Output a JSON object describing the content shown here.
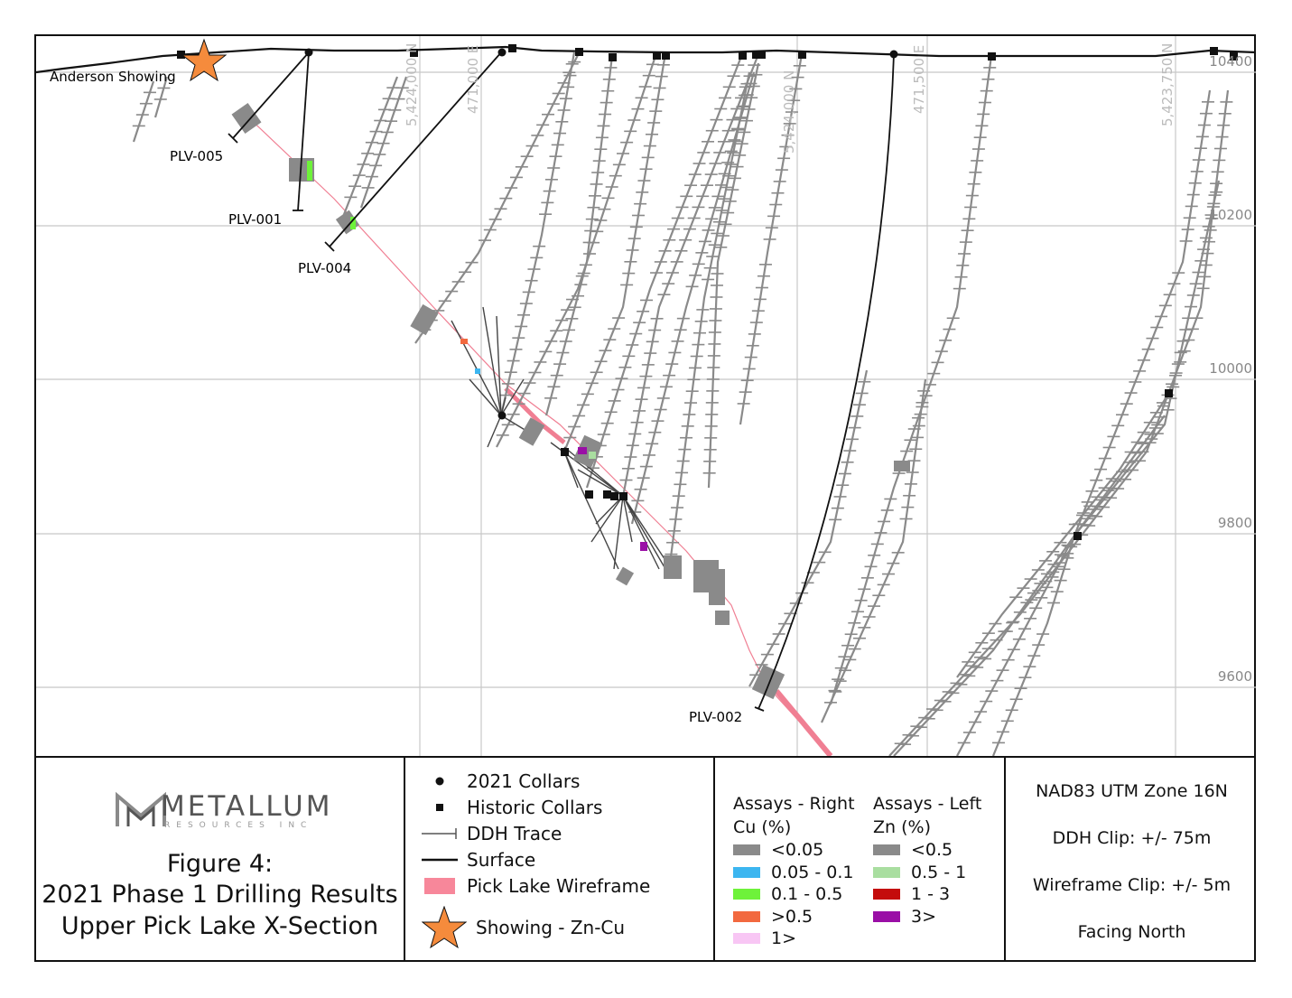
{
  "figure": {
    "company": "METALLUM",
    "company_sub": "RESOURCES INC",
    "title_lines": [
      "Figure 4:",
      "2021 Phase 1 Drilling Results",
      "Upper Pick Lake X-Section"
    ]
  },
  "map": {
    "showing_label": "Anderson Showing",
    "hole_labels": [
      "PLV-005",
      "PLV-001",
      "PLV-004",
      "PLV-002"
    ],
    "elevation_labels": [
      "10400",
      "10200",
      "10000",
      "9800",
      "9600"
    ],
    "grid_labels": [
      "5,424,000 N",
      "471,000 E",
      "5,424,000 N",
      "471,500 E",
      "5,423,750 N"
    ]
  },
  "legend": {
    "items": [
      {
        "label": "2021 Collars",
        "icon": "circle-icon"
      },
      {
        "label": "Historic Collars",
        "icon": "square-icon"
      },
      {
        "label": "DDH Trace",
        "icon": "trace-icon"
      },
      {
        "label": "Surface",
        "icon": "line-icon"
      },
      {
        "label": "Pick Lake Wireframe",
        "icon": "pink-box-icon"
      },
      {
        "label": "Showing - Zn-Cu",
        "icon": "star-icon"
      }
    ]
  },
  "assays": {
    "right": {
      "title1": "Assays - Right",
      "title2": "Cu (%)",
      "rows": [
        {
          "label": "<0.05",
          "color": "#8a8a8a"
        },
        {
          "label": "0.05 - 0.1",
          "color": "#3cb6f0"
        },
        {
          "label": "0.1 - 0.5",
          "color": "#6ef23a"
        },
        {
          "label": ">0.5",
          "color": "#f2693f"
        },
        {
          "label": "1>",
          "color": "#f8c6f4"
        }
      ]
    },
    "left": {
      "title1": "Assays - Left",
      "title2": "Zn (%)",
      "rows": [
        {
          "label": "<0.5",
          "color": "#8a8a8a"
        },
        {
          "label": "0.5 - 1",
          "color": "#a9dea0"
        },
        {
          "label": "1 - 3",
          "color": "#c40c0c"
        },
        {
          "label": "3>",
          "color": "#9a0fa6"
        }
      ]
    }
  },
  "info": {
    "datum": "NAD83 UTM Zone 16N",
    "ddh_clip": "DDH Clip: +/- 75m",
    "wireframe_clip": "Wireframe Clip: +/- 5m",
    "facing": "Facing North"
  }
}
